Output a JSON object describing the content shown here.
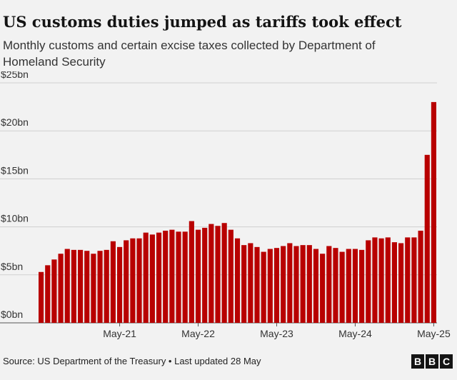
{
  "chart_data": {
    "type": "bar",
    "title": "US customs duties jumped as tariffs took effect",
    "subtitle": "Monthly customs and certain excise taxes collected by Department of Homeland Security",
    "source": "Source: US Department of the Treasury • Last updated 28 May",
    "logo": [
      "B",
      "B",
      "C"
    ],
    "color": "#b80000",
    "categories": [
      null,
      null,
      null,
      null,
      null,
      null,
      null,
      null,
      null,
      null,
      null,
      null,
      "May-21",
      null,
      null,
      null,
      null,
      null,
      null,
      null,
      null,
      null,
      null,
      null,
      "May-22",
      null,
      null,
      null,
      null,
      null,
      null,
      null,
      null,
      null,
      null,
      null,
      "May-23",
      null,
      null,
      null,
      null,
      null,
      null,
      null,
      null,
      null,
      null,
      null,
      "May-24",
      null,
      null,
      null,
      null,
      null,
      null,
      null,
      null,
      null,
      null,
      null,
      "May-25"
    ],
    "values": [
      5.3,
      6.0,
      6.6,
      7.2,
      7.7,
      7.6,
      7.6,
      7.5,
      7.2,
      7.5,
      7.6,
      8.5,
      7.9,
      8.6,
      8.8,
      8.8,
      9.4,
      9.2,
      9.4,
      9.6,
      9.7,
      9.5,
      9.5,
      10.6,
      9.7,
      9.9,
      10.3,
      10.1,
      10.4,
      9.7,
      8.8,
      8.1,
      8.3,
      7.9,
      7.4,
      7.7,
      7.8,
      8.0,
      8.3,
      8.0,
      8.1,
      8.1,
      7.7,
      7.2,
      8.0,
      7.8,
      7.4,
      7.7,
      7.7,
      7.6,
      8.6,
      8.9,
      8.8,
      8.9,
      8.4,
      8.3,
      8.9,
      8.9,
      9.6,
      17.5,
      23.0
    ],
    "ylim": [
      0,
      25
    ],
    "yticks": [
      {
        "value": 0,
        "label": "$0bn"
      },
      {
        "value": 5,
        "label": "$5bn"
      },
      {
        "value": 10,
        "label": "$10bn"
      },
      {
        "value": 15,
        "label": "$15bn"
      },
      {
        "value": 20,
        "label": "$20bn"
      },
      {
        "value": 25,
        "label": "$25bn"
      }
    ],
    "grid": true
  }
}
